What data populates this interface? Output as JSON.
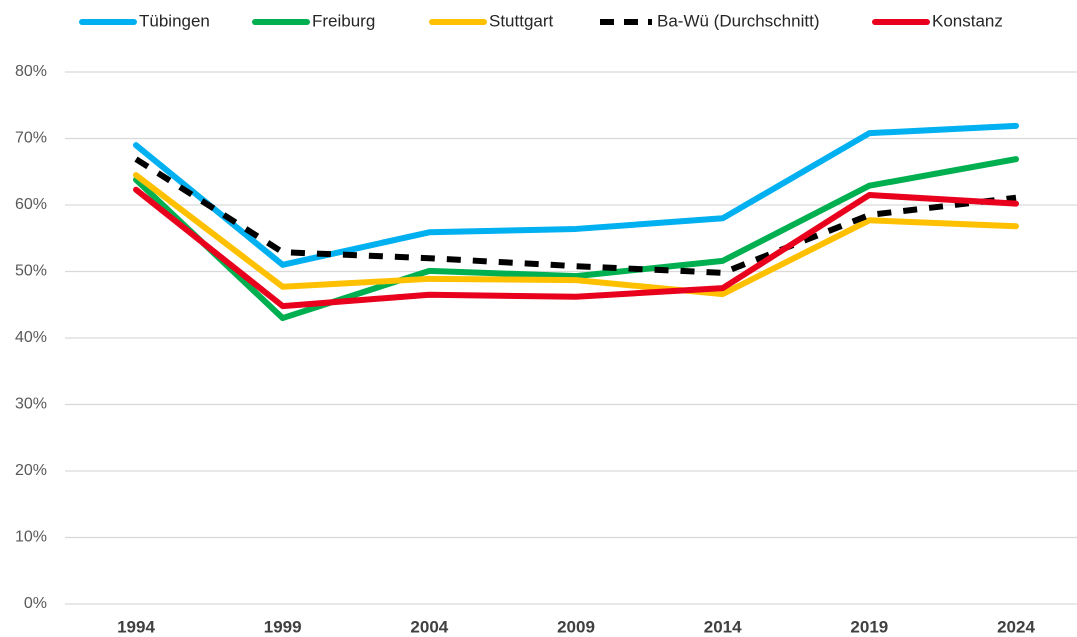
{
  "chart_data": {
    "type": "line",
    "categories": [
      "1994",
      "1999",
      "2004",
      "2009",
      "2014",
      "2019",
      "2024"
    ],
    "series": [
      {
        "name": "Tübingen",
        "color": "#00b0f0",
        "values": [
          69.0,
          51.0,
          55.9,
          56.4,
          58.0,
          70.8,
          71.9
        ]
      },
      {
        "name": "Freiburg",
        "color": "#00b050",
        "values": [
          63.8,
          43.0,
          50.1,
          49.3,
          51.6,
          62.9,
          66.9
        ]
      },
      {
        "name": "Stuttgart",
        "color": "#ffc000",
        "values": [
          64.5,
          47.7,
          48.9,
          48.7,
          46.6,
          57.7,
          56.8
        ]
      },
      {
        "name": "Ba-Wü (Durchschnitt)",
        "color": "#000000",
        "dashed": true,
        "values": [
          66.9,
          52.9,
          52.0,
          50.8,
          49.8,
          58.5,
          61.1
        ]
      },
      {
        "name": "Konstanz",
        "color": "#e8001c",
        "values": [
          62.3,
          44.8,
          46.5,
          46.2,
          47.5,
          61.5,
          60.2
        ]
      }
    ],
    "ylim": [
      0,
      80
    ],
    "yticks": [
      {
        "value": 0,
        "label": "0%"
      },
      {
        "value": 10,
        "label": "10%"
      },
      {
        "value": 20,
        "label": "20%"
      },
      {
        "value": 30,
        "label": "30%"
      },
      {
        "value": 40,
        "label": "40%"
      },
      {
        "value": 50,
        "label": "50%"
      },
      {
        "value": 60,
        "label": "60%"
      },
      {
        "value": 70,
        "label": "70%"
      },
      {
        "value": 80,
        "label": "80%"
      }
    ],
    "grid": true,
    "legend": "top"
  }
}
